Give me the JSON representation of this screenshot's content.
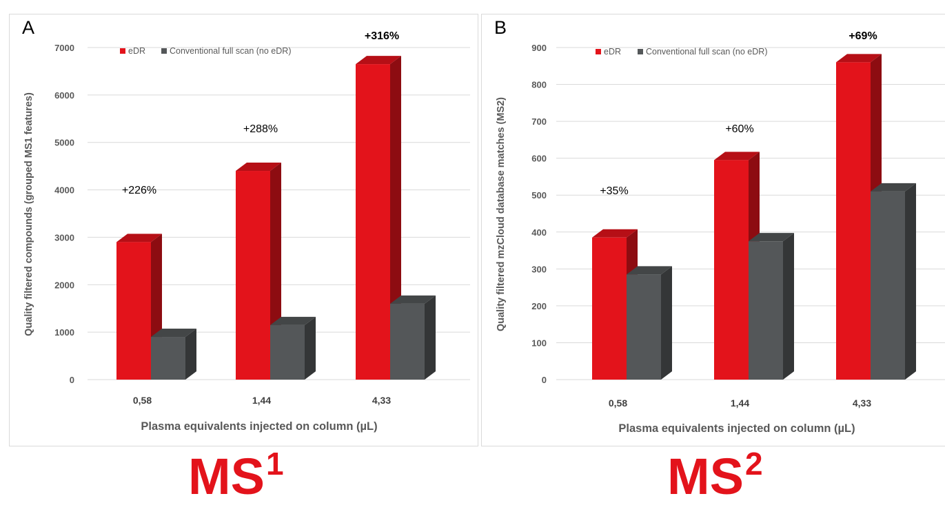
{
  "chart_data": [
    {
      "panel": "A",
      "type": "bar",
      "ylabel": "Quality filtered compounds  (grouped MS1 features)",
      "xlabel": "Plasma equivalents injected on column (µL)",
      "categories": [
        "0,58",
        "1,44",
        "4,33"
      ],
      "series": [
        {
          "name": "eDR",
          "values": [
            2900,
            4400,
            6650
          ],
          "color": "#e3131b"
        },
        {
          "name": "Conventional full scan (no eDR)",
          "values": [
            900,
            1150,
            1600
          ],
          "color": "#545759"
        }
      ],
      "annotations": [
        "+226%",
        "+288%",
        "+316%"
      ],
      "annotation_bold": [
        false,
        false,
        true
      ],
      "ylim": [
        0,
        7000
      ],
      "yticks": [
        "0",
        "1000",
        "2000",
        "3000",
        "4000",
        "5000",
        "6000",
        "7000"
      ],
      "grid": true,
      "legend": "top-left"
    },
    {
      "panel": "B",
      "type": "bar",
      "ylabel": "Quality filtered mzCloud database matches (MS2)",
      "xlabel": "Plasma equivalents injected on column (µL)",
      "categories": [
        "0,58",
        "1,44",
        "4,33"
      ],
      "series": [
        {
          "name": "eDR",
          "values": [
            385,
            595,
            860
          ],
          "color": "#e3131b"
        },
        {
          "name": "Conventional full scan (no eDR)",
          "values": [
            285,
            375,
            510
          ],
          "color": "#545759"
        }
      ],
      "annotations": [
        "+35%",
        "+60%",
        "+69%"
      ],
      "annotation_bold": [
        false,
        false,
        true
      ],
      "ylim": [
        0,
        900
      ],
      "yticks": [
        "0",
        "100",
        "200",
        "300",
        "400",
        "500",
        "600",
        "700",
        "800",
        "900"
      ],
      "grid": true,
      "legend": "top-left"
    }
  ],
  "figure_labels": {
    "ms1_main": "MS",
    "ms1_sup": "1",
    "ms2_main": "MS",
    "ms2_sup": "2"
  }
}
